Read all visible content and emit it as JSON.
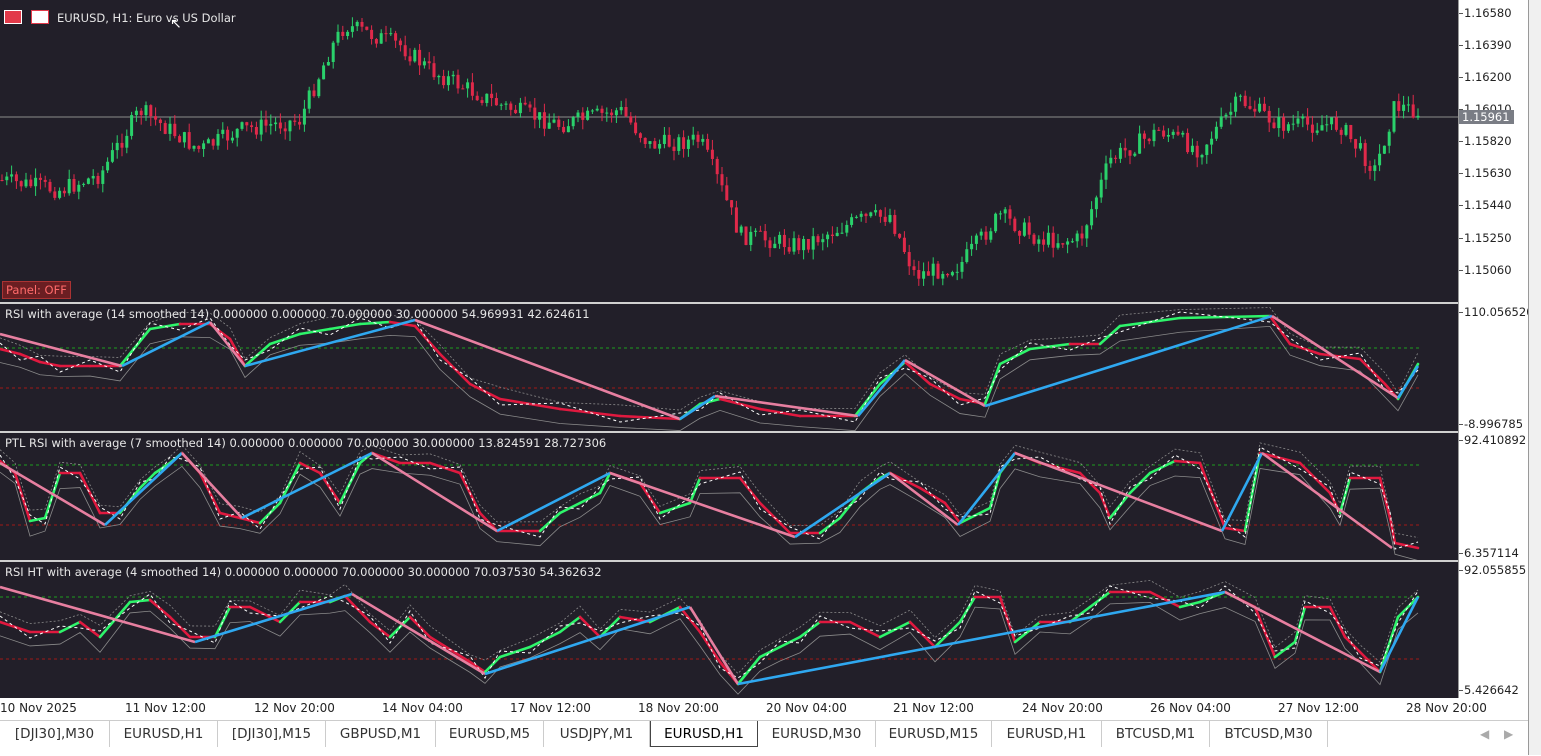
{
  "chart_header": {
    "symbol_title": "EURUSD, H1:  Euro vs US Dollar"
  },
  "panel_button": "Panel: OFF",
  "price_pane": {
    "scale": [
      "1.16580",
      "1.16390",
      "1.16200",
      "1.16010",
      "1.15820",
      "1.15630",
      "1.15440",
      "1.15250",
      "1.15060"
    ],
    "current_price": "1.15961",
    "colors": {
      "bull": "#2ad16b",
      "bear": "#e0294a",
      "background": "#221f29",
      "price_line": "#8c8c8c"
    }
  },
  "indicator_panes": [
    {
      "label": "RSI with average (14 smoothed 14) 0.000000 0.000000 70.000000 30.000000 54.969931 42.624611",
      "max": "110.056520",
      "min": "-8.996785"
    },
    {
      "label": "PTL RSI  with average (7 smoothed 14) 0.000000 0.000000 70.000000 30.000000 13.824591 28.727306",
      "max": "92.410892",
      "min": "6.357114"
    },
    {
      "label": "RSI HT with average (4 smoothed 14) 0.000000 0.000000 70.000000 30.000000 70.037530 54.362632",
      "max": "92.055855",
      "min": "5.426642"
    }
  ],
  "indicator_colors": {
    "up": "#2ef56b",
    "down": "#e0193f",
    "zigzag_up": "#2fa8f0",
    "zigzag_down": "#e77fa0",
    "signal": "#ffffff",
    "level_high": "#1f9e1f",
    "level_low": "#a01818"
  },
  "time_axis": [
    "10 Nov 2025",
    "11 Nov 12:00",
    "12 Nov 20:00",
    "14 Nov 04:00",
    "17 Nov 12:00",
    "18 Nov 20:00",
    "20 Nov 04:00",
    "21 Nov 12:00",
    "24 Nov 20:00",
    "26 Nov 04:00",
    "27 Nov 12:00",
    "28 Nov 20:00"
  ],
  "tabs": [
    "[DJI30],M30",
    "EURUSD,H1",
    "[DJI30],M15",
    "GBPUSD,M1",
    "EURUSD,M5",
    "USDJPY,M1",
    "EURUSD,H1",
    "EURUSD,M30",
    "EURUSD,M15",
    "EURUSD,H1",
    "BTCUSD,M1",
    "BTCUSD,M30"
  ],
  "active_tab": "EURUSD,H1",
  "icons": [
    "chart-menu-icon",
    "one-click-trading-icon",
    "scroll-left-icon",
    "scroll-right-icon",
    "cursor-icon"
  ]
}
